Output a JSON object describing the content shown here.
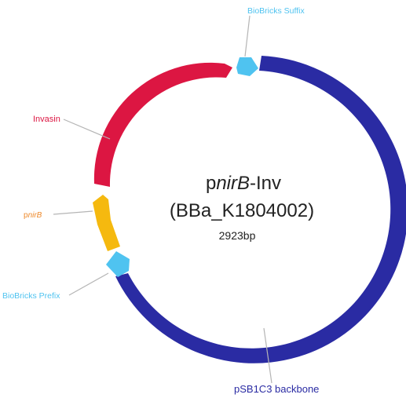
{
  "plasmid": {
    "title_prefix": "p",
    "title_italic": "nirB",
    "title_suffix": "-Inv",
    "part_id": "(BBa_K1804002)",
    "size": "2923bp"
  },
  "features": {
    "suffix": {
      "label": "BioBricks Suffix",
      "color": "#4fc3f0"
    },
    "invasin": {
      "label": "Invasin",
      "color": "#dc1642"
    },
    "pnirb": {
      "label_prefix": "p",
      "label_italic": "nirB",
      "color": "#f5b90f",
      "label_color": "#ee8a2c"
    },
    "prefix": {
      "label": "BioBricks Prefix",
      "color": "#4fc3f0"
    },
    "backbone": {
      "label": "pSB1C3 backbone",
      "color": "#2a2ba3"
    }
  },
  "colors": {
    "leader_line": "#b5b5b5",
    "title_text": "#222222"
  }
}
